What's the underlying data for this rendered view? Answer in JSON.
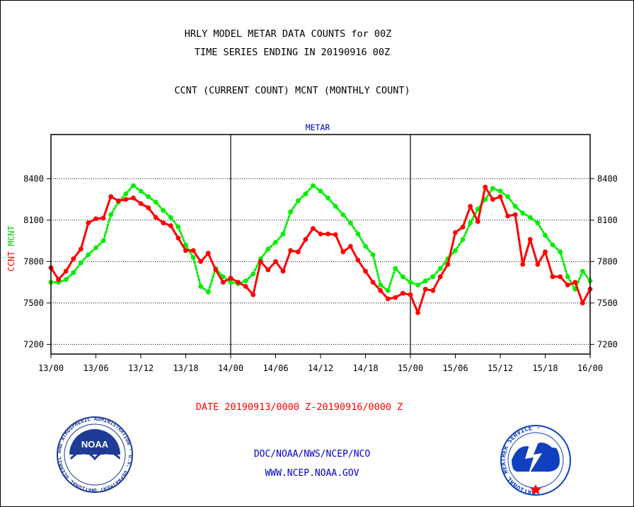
{
  "header": {
    "title_line1": "HRLY MODEL METAR DATA COUNTS for 00Z",
    "title_line2": "TIME SERIES ENDING IN 20190916 00Z",
    "subtitle": "CCNT (CURRENT COUNT) MCNT (MONTHLY COUNT)"
  },
  "footer": {
    "date_range": "DATE 20190913/0000 Z-20190916/0000 Z",
    "org_line": "DOC/NOAA/NWS/NCEP/NCO",
    "url_line": "WWW.NCEP.NOAA.GOV",
    "noaa_logo_text": "NOAA",
    "noaa_ring_text": "NATIONAL OCEANIC AND ATMOSPHERIC ADMINISTRATION · U.S. DEPARTMENT OF COMMERCE ·",
    "nws_ring_text": "NATIONAL WEATHER SERVICE ·"
  },
  "colors": {
    "ccnt": "#ff0000",
    "mcnt": "#00ee00",
    "label_blue": "#0000cc",
    "date_red": "#ff0000",
    "noaa_blue": "#1e3c96",
    "nws_blue": "#1040c0"
  },
  "chart_data": {
    "type": "line",
    "panel_label": "METAR",
    "ylabel_ccnt": "CCNT",
    "ylabel_mcnt": "MCNT",
    "ylim": [
      7130,
      8720
    ],
    "y_ticks": [
      7200,
      7500,
      7800,
      8100,
      8400
    ],
    "x_range": [
      0,
      72
    ],
    "x_ticks": [
      {
        "x": 0,
        "label": "13/00"
      },
      {
        "x": 6,
        "label": "13/06"
      },
      {
        "x": 12,
        "label": "13/12"
      },
      {
        "x": 18,
        "label": "13/18"
      },
      {
        "x": 24,
        "label": "14/00"
      },
      {
        "x": 30,
        "label": "14/06"
      },
      {
        "x": 36,
        "label": "14/12"
      },
      {
        "x": 42,
        "label": "14/18"
      },
      {
        "x": 48,
        "label": "15/00"
      },
      {
        "x": 54,
        "label": "15/06"
      },
      {
        "x": 60,
        "label": "15/12"
      },
      {
        "x": 66,
        "label": "15/18"
      },
      {
        "x": 72,
        "label": "16/00"
      }
    ],
    "day_dividers": [
      24,
      48
    ],
    "grid": true,
    "series": [
      {
        "name": "CCNT",
        "style": "solid",
        "values": [
          7755,
          7670,
          7730,
          7820,
          7890,
          8080,
          8110,
          8115,
          8270,
          8240,
          8250,
          8260,
          8220,
          8190,
          8120,
          8080,
          8060,
          7970,
          7880,
          7880,
          7800,
          7860,
          7740,
          7650,
          7680,
          7650,
          7620,
          7560,
          7800,
          7740,
          7800,
          7730,
          7880,
          7870,
          7960,
          8040,
          8000,
          8000,
          7995,
          7870,
          7910,
          7810,
          7730,
          7650,
          7590,
          7530,
          7540,
          7570,
          7560,
          7430,
          7600,
          7590,
          7690,
          7780,
          8010,
          8050,
          8200,
          8090,
          8340,
          8250,
          8270,
          8130,
          8140,
          7780,
          7960,
          7780,
          7870,
          7690,
          7690,
          7630,
          7650,
          7500,
          7600
        ]
      },
      {
        "name": "MCNT",
        "style": "dotted",
        "values": [
          7650,
          7650,
          7670,
          7720,
          7790,
          7850,
          7900,
          7950,
          8140,
          8230,
          8290,
          8350,
          8310,
          8270,
          8230,
          8170,
          8120,
          8050,
          7920,
          7830,
          7620,
          7580,
          7750,
          7690,
          7650,
          7640,
          7660,
          7710,
          7820,
          7890,
          7940,
          8000,
          8160,
          8240,
          8290,
          8350,
          8310,
          8260,
          8200,
          8140,
          8080,
          8000,
          7910,
          7850,
          7630,
          7590,
          7750,
          7690,
          7650,
          7630,
          7660,
          7690,
          7750,
          7820,
          7880,
          7960,
          8080,
          8180,
          8250,
          8330,
          8310,
          8270,
          8200,
          8150,
          8120,
          8080,
          7990,
          7920,
          7870,
          7690,
          7600,
          7730,
          7660
        ]
      }
    ]
  }
}
